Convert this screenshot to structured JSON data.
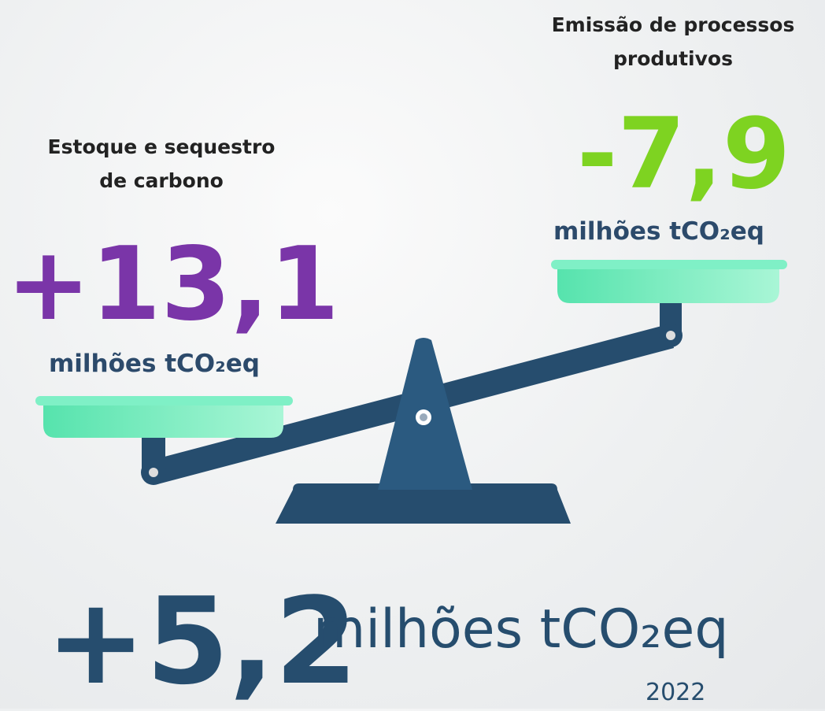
{
  "left": {
    "label_lines": [
      "Estoque e sequestro",
      "de carbono"
    ],
    "value": "+13,1",
    "unit": "milhões tCO₂eq"
  },
  "right": {
    "label_lines": [
      "Emissão de processos",
      "produtivos"
    ],
    "value": "-7,9",
    "unit": "milhões tCO₂eq"
  },
  "total": {
    "value": "+5,2",
    "unit": "milhões tCO₂eq",
    "year": "2022"
  }
}
